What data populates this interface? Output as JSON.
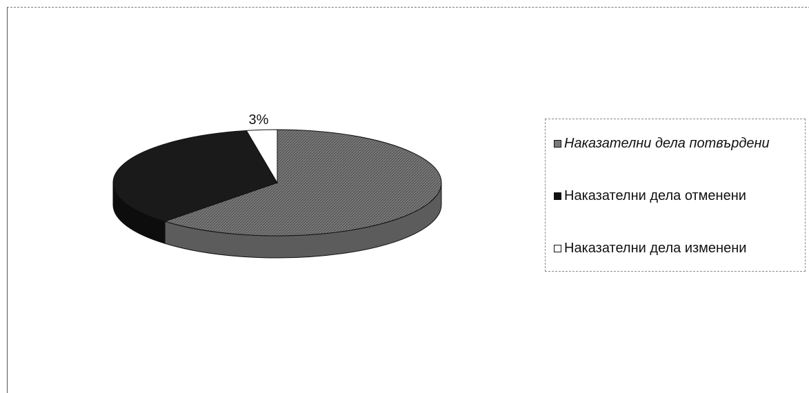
{
  "chart_data": {
    "type": "pie",
    "style": "3d",
    "categories": [
      "Наказателни дела потвърдени",
      "Наказателни дела отменени",
      "Наказателни дела изменени"
    ],
    "values": [
      62,
      35,
      3
    ],
    "data_labels": [
      "",
      "",
      "3%"
    ],
    "colors": [
      "#6f6f6f",
      "#1a1a1a",
      "#ffffff"
    ],
    "legend_placement": "right",
    "title": ""
  }
}
